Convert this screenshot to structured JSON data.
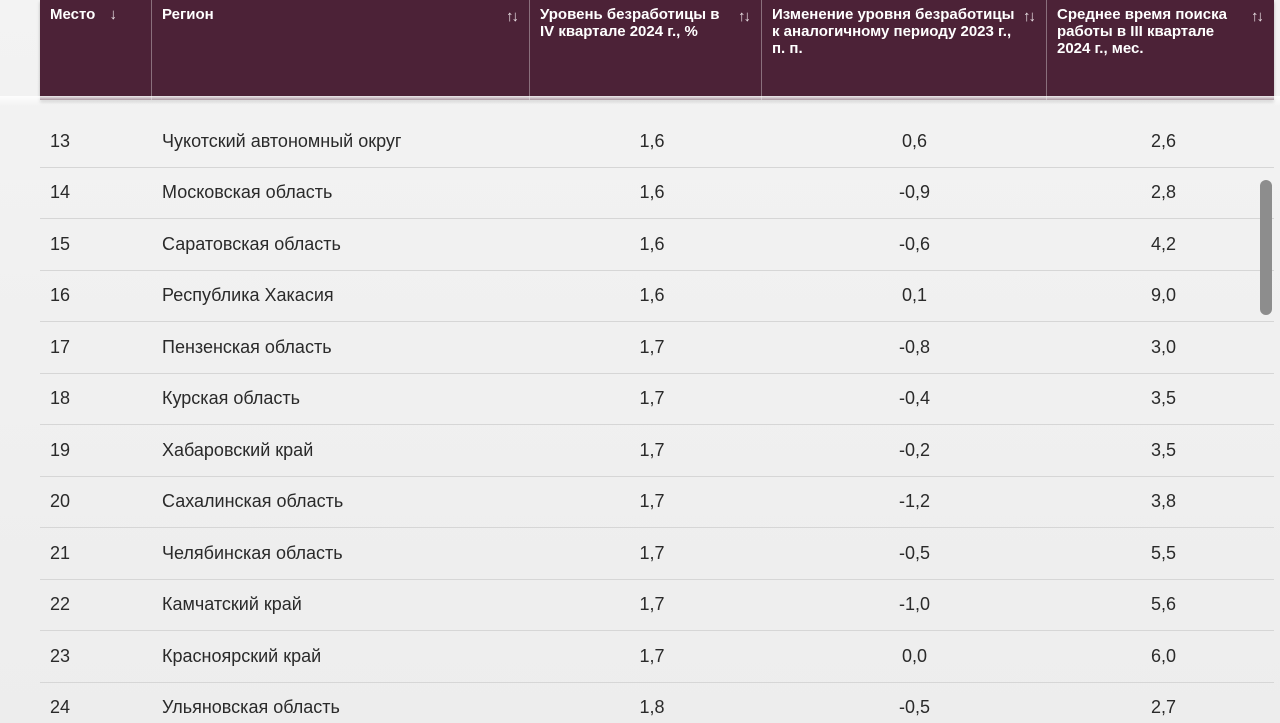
{
  "header": {
    "columns": [
      {
        "label": "Место",
        "sort_icon": "↓"
      },
      {
        "label": "Регион",
        "sort_icon": "↑↓"
      },
      {
        "label": "Уровень безработицы в IV квартале 2024 г., %",
        "sort_icon": "↑↓"
      },
      {
        "label": "Изменение уровня безработицы к аналогичному периоду 2023 г., п. п.",
        "sort_icon": "↑↓"
      },
      {
        "label": "Среднее время поиска работы в III квартале 2024 г., мес.",
        "sort_icon": "↑↓"
      }
    ]
  },
  "rows": [
    {
      "place": "13",
      "region": "Чукотский автономный округ",
      "rate": "1,6",
      "change": "0,6",
      "time": "2,6"
    },
    {
      "place": "14",
      "region": "Московская область",
      "rate": "1,6",
      "change": "-0,9",
      "time": "2,8"
    },
    {
      "place": "15",
      "region": "Саратовская область",
      "rate": "1,6",
      "change": "-0,6",
      "time": "4,2"
    },
    {
      "place": "16",
      "region": "Республика Хакасия",
      "rate": "1,6",
      "change": "0,1",
      "time": "9,0"
    },
    {
      "place": "17",
      "region": "Пензенская область",
      "rate": "1,7",
      "change": "-0,8",
      "time": "3,0"
    },
    {
      "place": "18",
      "region": "Курская область",
      "rate": "1,7",
      "change": "-0,4",
      "time": "3,5"
    },
    {
      "place": "19",
      "region": "Хабаровский край",
      "rate": "1,7",
      "change": "-0,2",
      "time": "3,5"
    },
    {
      "place": "20",
      "region": "Сахалинская область",
      "rate": "1,7",
      "change": "-1,2",
      "time": "3,8"
    },
    {
      "place": "21",
      "region": "Челябинская область",
      "rate": "1,7",
      "change": "-0,5",
      "time": "5,5"
    },
    {
      "place": "22",
      "region": "Камчатский край",
      "rate": "1,7",
      "change": "-1,0",
      "time": "5,6"
    },
    {
      "place": "23",
      "region": "Красноярский край",
      "rate": "1,7",
      "change": "0,0",
      "time": "6,0"
    },
    {
      "place": "24",
      "region": "Ульяновская область",
      "rate": "1,8",
      "change": "-0,5",
      "time": "2,7"
    }
  ],
  "colors": {
    "header_bg": "#4c2237",
    "header_text": "#ffffff",
    "row_border": "#d6d6d6",
    "scrollbar": "#8d8d8d"
  }
}
